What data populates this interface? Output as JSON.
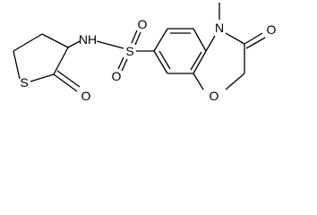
{
  "atoms": [
    "S",
    "O",
    "NH",
    "S",
    "O",
    "O",
    "N",
    "O",
    "O"
  ]
}
